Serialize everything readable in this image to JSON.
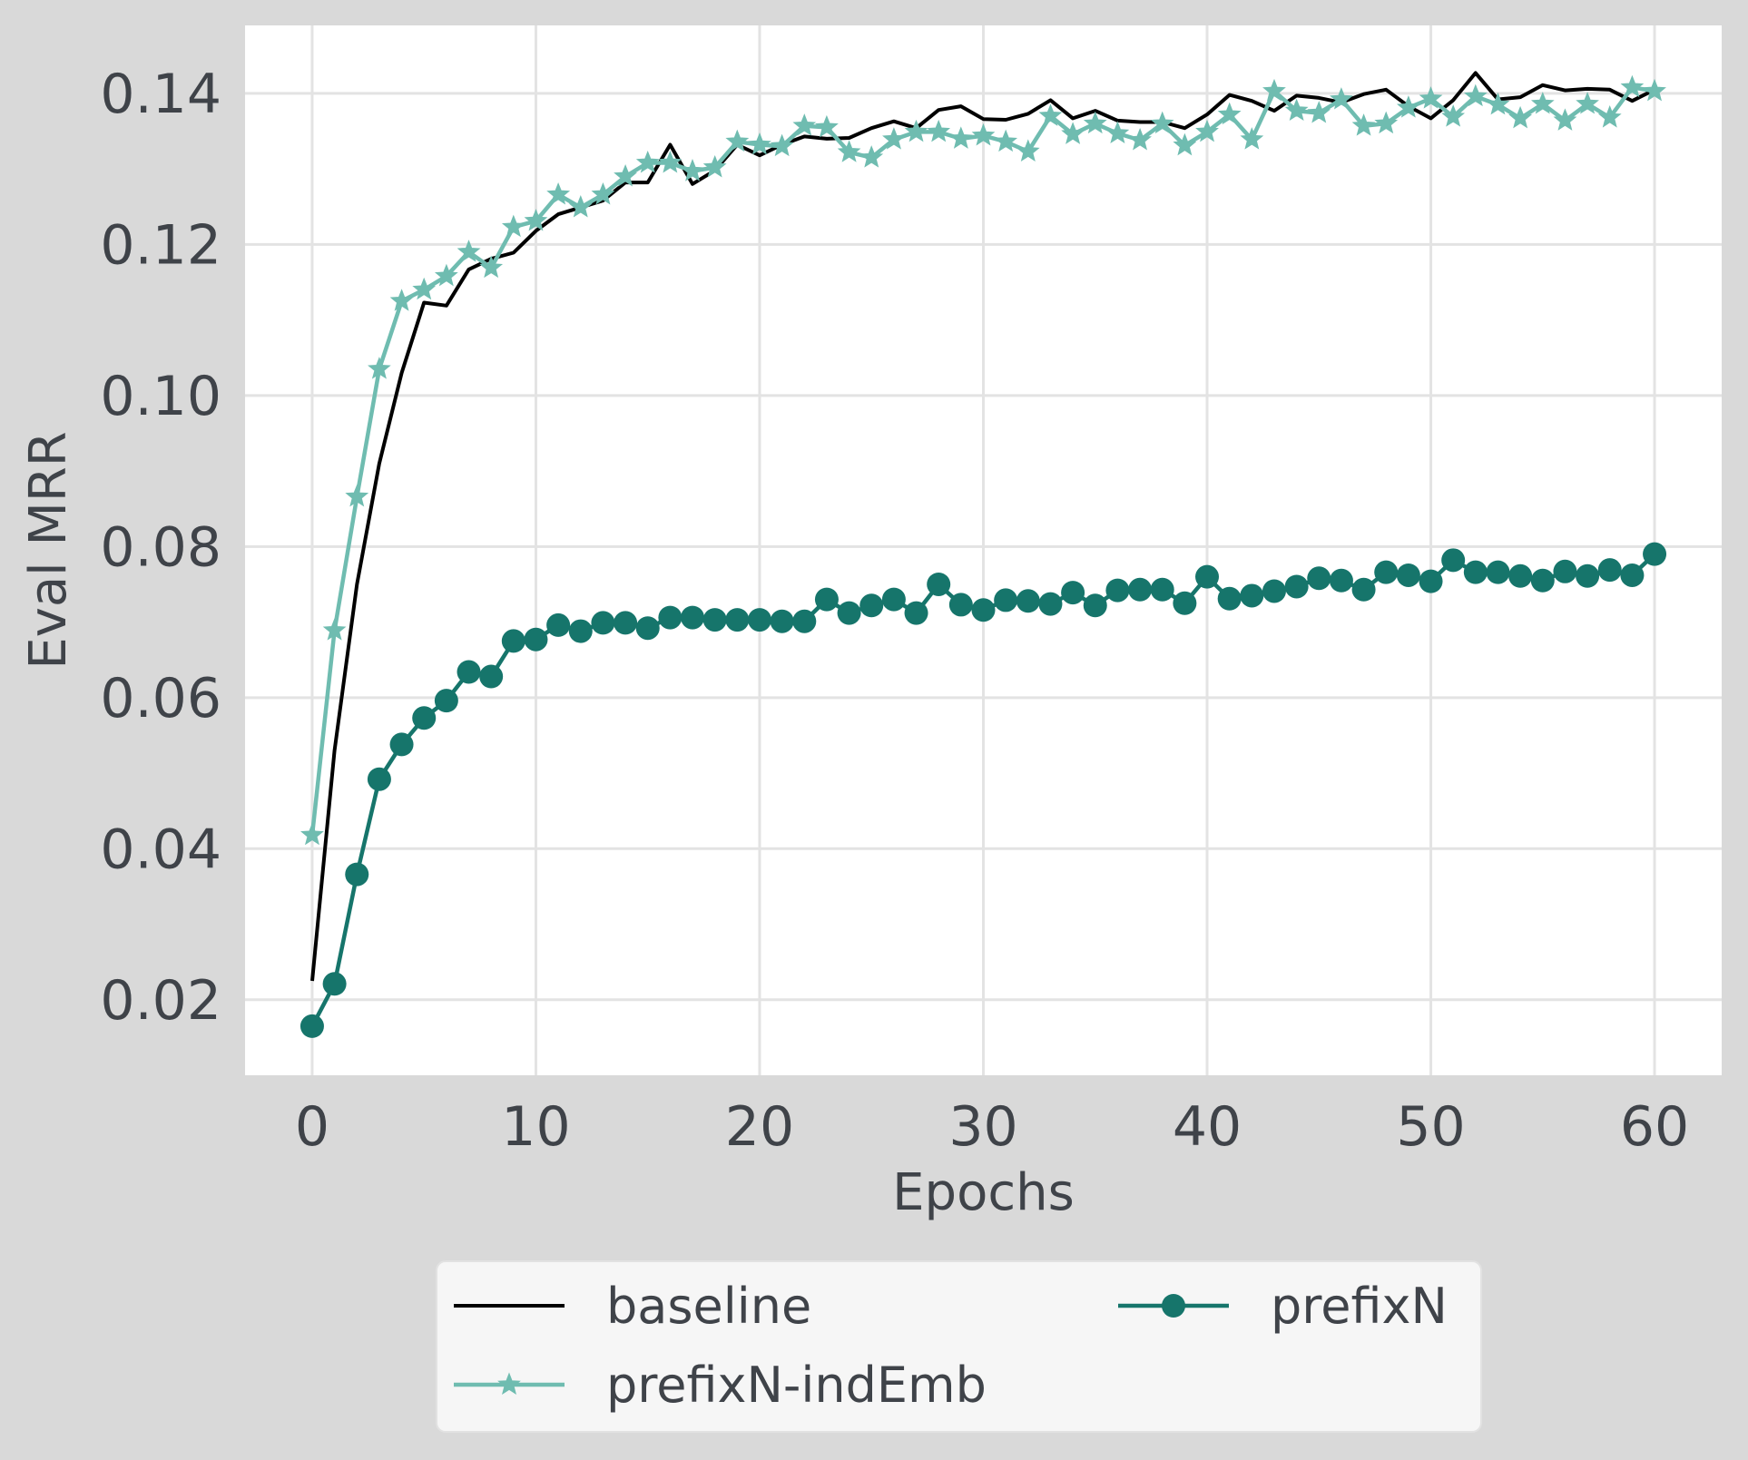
{
  "chart_data": {
    "type": "line",
    "title": "",
    "xlabel": "Epochs",
    "ylabel": "Eval MRR",
    "xlim": [
      -3,
      63
    ],
    "ylim": [
      0.01,
      0.149
    ],
    "xticks": [
      0,
      10,
      20,
      30,
      40,
      50,
      60
    ],
    "xtick_labels": [
      "0",
      "10",
      "20",
      "30",
      "40",
      "50",
      "60"
    ],
    "yticks": [
      0.02,
      0.04,
      0.06,
      0.08,
      0.1,
      0.12,
      0.14
    ],
    "ytick_labels": [
      "0.02",
      "0.04",
      "0.06",
      "0.08",
      "0.10",
      "0.12",
      "0.14"
    ],
    "grid": true,
    "legend_position": "bottom-outside",
    "legend_columns": 2,
    "colors": {
      "page_background": "#d9d9d9",
      "plot_background": "#ffffff",
      "grid": "#e3e3e3",
      "legend_background": "#f6f6f6",
      "text": "#3f4349"
    },
    "x": [
      0,
      1,
      2,
      3,
      4,
      5,
      6,
      7,
      8,
      9,
      10,
      11,
      12,
      13,
      14,
      15,
      16,
      17,
      18,
      19,
      20,
      21,
      22,
      23,
      24,
      25,
      26,
      27,
      28,
      29,
      30,
      31,
      32,
      33,
      34,
      35,
      36,
      37,
      38,
      39,
      40,
      41,
      42,
      43,
      44,
      45,
      46,
      47,
      48,
      49,
      50,
      51,
      52,
      53,
      54,
      55,
      56,
      57,
      58,
      59,
      60
    ],
    "series": [
      {
        "name": "baseline",
        "color": "#000000",
        "marker": "none",
        "values": [
          0.0225,
          0.053,
          0.075,
          0.091,
          0.103,
          0.1123,
          0.1119,
          0.1167,
          0.1181,
          0.1189,
          0.1218,
          0.124,
          0.1249,
          0.1258,
          0.1282,
          0.1282,
          0.1332,
          0.128,
          0.1298,
          0.1332,
          0.1318,
          0.1332,
          0.1343,
          0.134,
          0.1341,
          0.1354,
          0.1363,
          0.1354,
          0.1378,
          0.1383,
          0.1366,
          0.1365,
          0.1373,
          0.1391,
          0.1367,
          0.1377,
          0.1364,
          0.1362,
          0.1362,
          0.1354,
          0.1372,
          0.1398,
          0.139,
          0.1377,
          0.1397,
          0.1394,
          0.1388,
          0.1399,
          0.1405,
          0.1383,
          0.1367,
          0.1391,
          0.1427,
          0.1392,
          0.1395,
          0.1411,
          0.1404,
          0.1406,
          0.1405,
          0.139,
          0.1405
        ]
      },
      {
        "name": "prefixN-indEmb",
        "color": "#6fbcb0",
        "marker": "star",
        "values": [
          0.0418,
          0.0689,
          0.0866,
          0.1035,
          0.1125,
          0.114,
          0.1158,
          0.119,
          0.1169,
          0.1223,
          0.1231,
          0.1266,
          0.1249,
          0.1266,
          0.129,
          0.1308,
          0.1308,
          0.1297,
          0.1302,
          0.1336,
          0.1332,
          0.133,
          0.1357,
          0.1355,
          0.1322,
          0.1315,
          0.1339,
          0.1349,
          0.1349,
          0.134,
          0.1344,
          0.1336,
          0.1323,
          0.137,
          0.1346,
          0.136,
          0.1347,
          0.1338,
          0.136,
          0.1331,
          0.1349,
          0.1372,
          0.1339,
          0.1403,
          0.1377,
          0.1374,
          0.1392,
          0.1357,
          0.136,
          0.1381,
          0.1393,
          0.1369,
          0.1396,
          0.1385,
          0.1367,
          0.1386,
          0.1364,
          0.1386,
          0.1368,
          0.1408,
          0.1403
        ]
      },
      {
        "name": "prefixN",
        "color": "#16756b",
        "marker": "circle",
        "values": [
          0.0165,
          0.0221,
          0.0366,
          0.0492,
          0.0538,
          0.0573,
          0.0596,
          0.0634,
          0.0628,
          0.0675,
          0.0677,
          0.0696,
          0.0688,
          0.0699,
          0.0699,
          0.0692,
          0.0706,
          0.0706,
          0.0703,
          0.0703,
          0.0703,
          0.0701,
          0.0701,
          0.073,
          0.0712,
          0.0722,
          0.073,
          0.0712,
          0.075,
          0.0723,
          0.0716,
          0.0729,
          0.0728,
          0.0724,
          0.0739,
          0.0722,
          0.0742,
          0.0743,
          0.0743,
          0.0725,
          0.076,
          0.0731,
          0.0735,
          0.0741,
          0.0747,
          0.0758,
          0.0755,
          0.0743,
          0.0766,
          0.0762,
          0.0754,
          0.0782,
          0.0766,
          0.0766,
          0.0761,
          0.0755,
          0.0767,
          0.0761,
          0.0769,
          0.0762,
          0.079
        ]
      }
    ],
    "legend": [
      {
        "label": "baseline"
      },
      {
        "label": "prefixN"
      },
      {
        "label": "prefixN-indEmb"
      }
    ]
  }
}
